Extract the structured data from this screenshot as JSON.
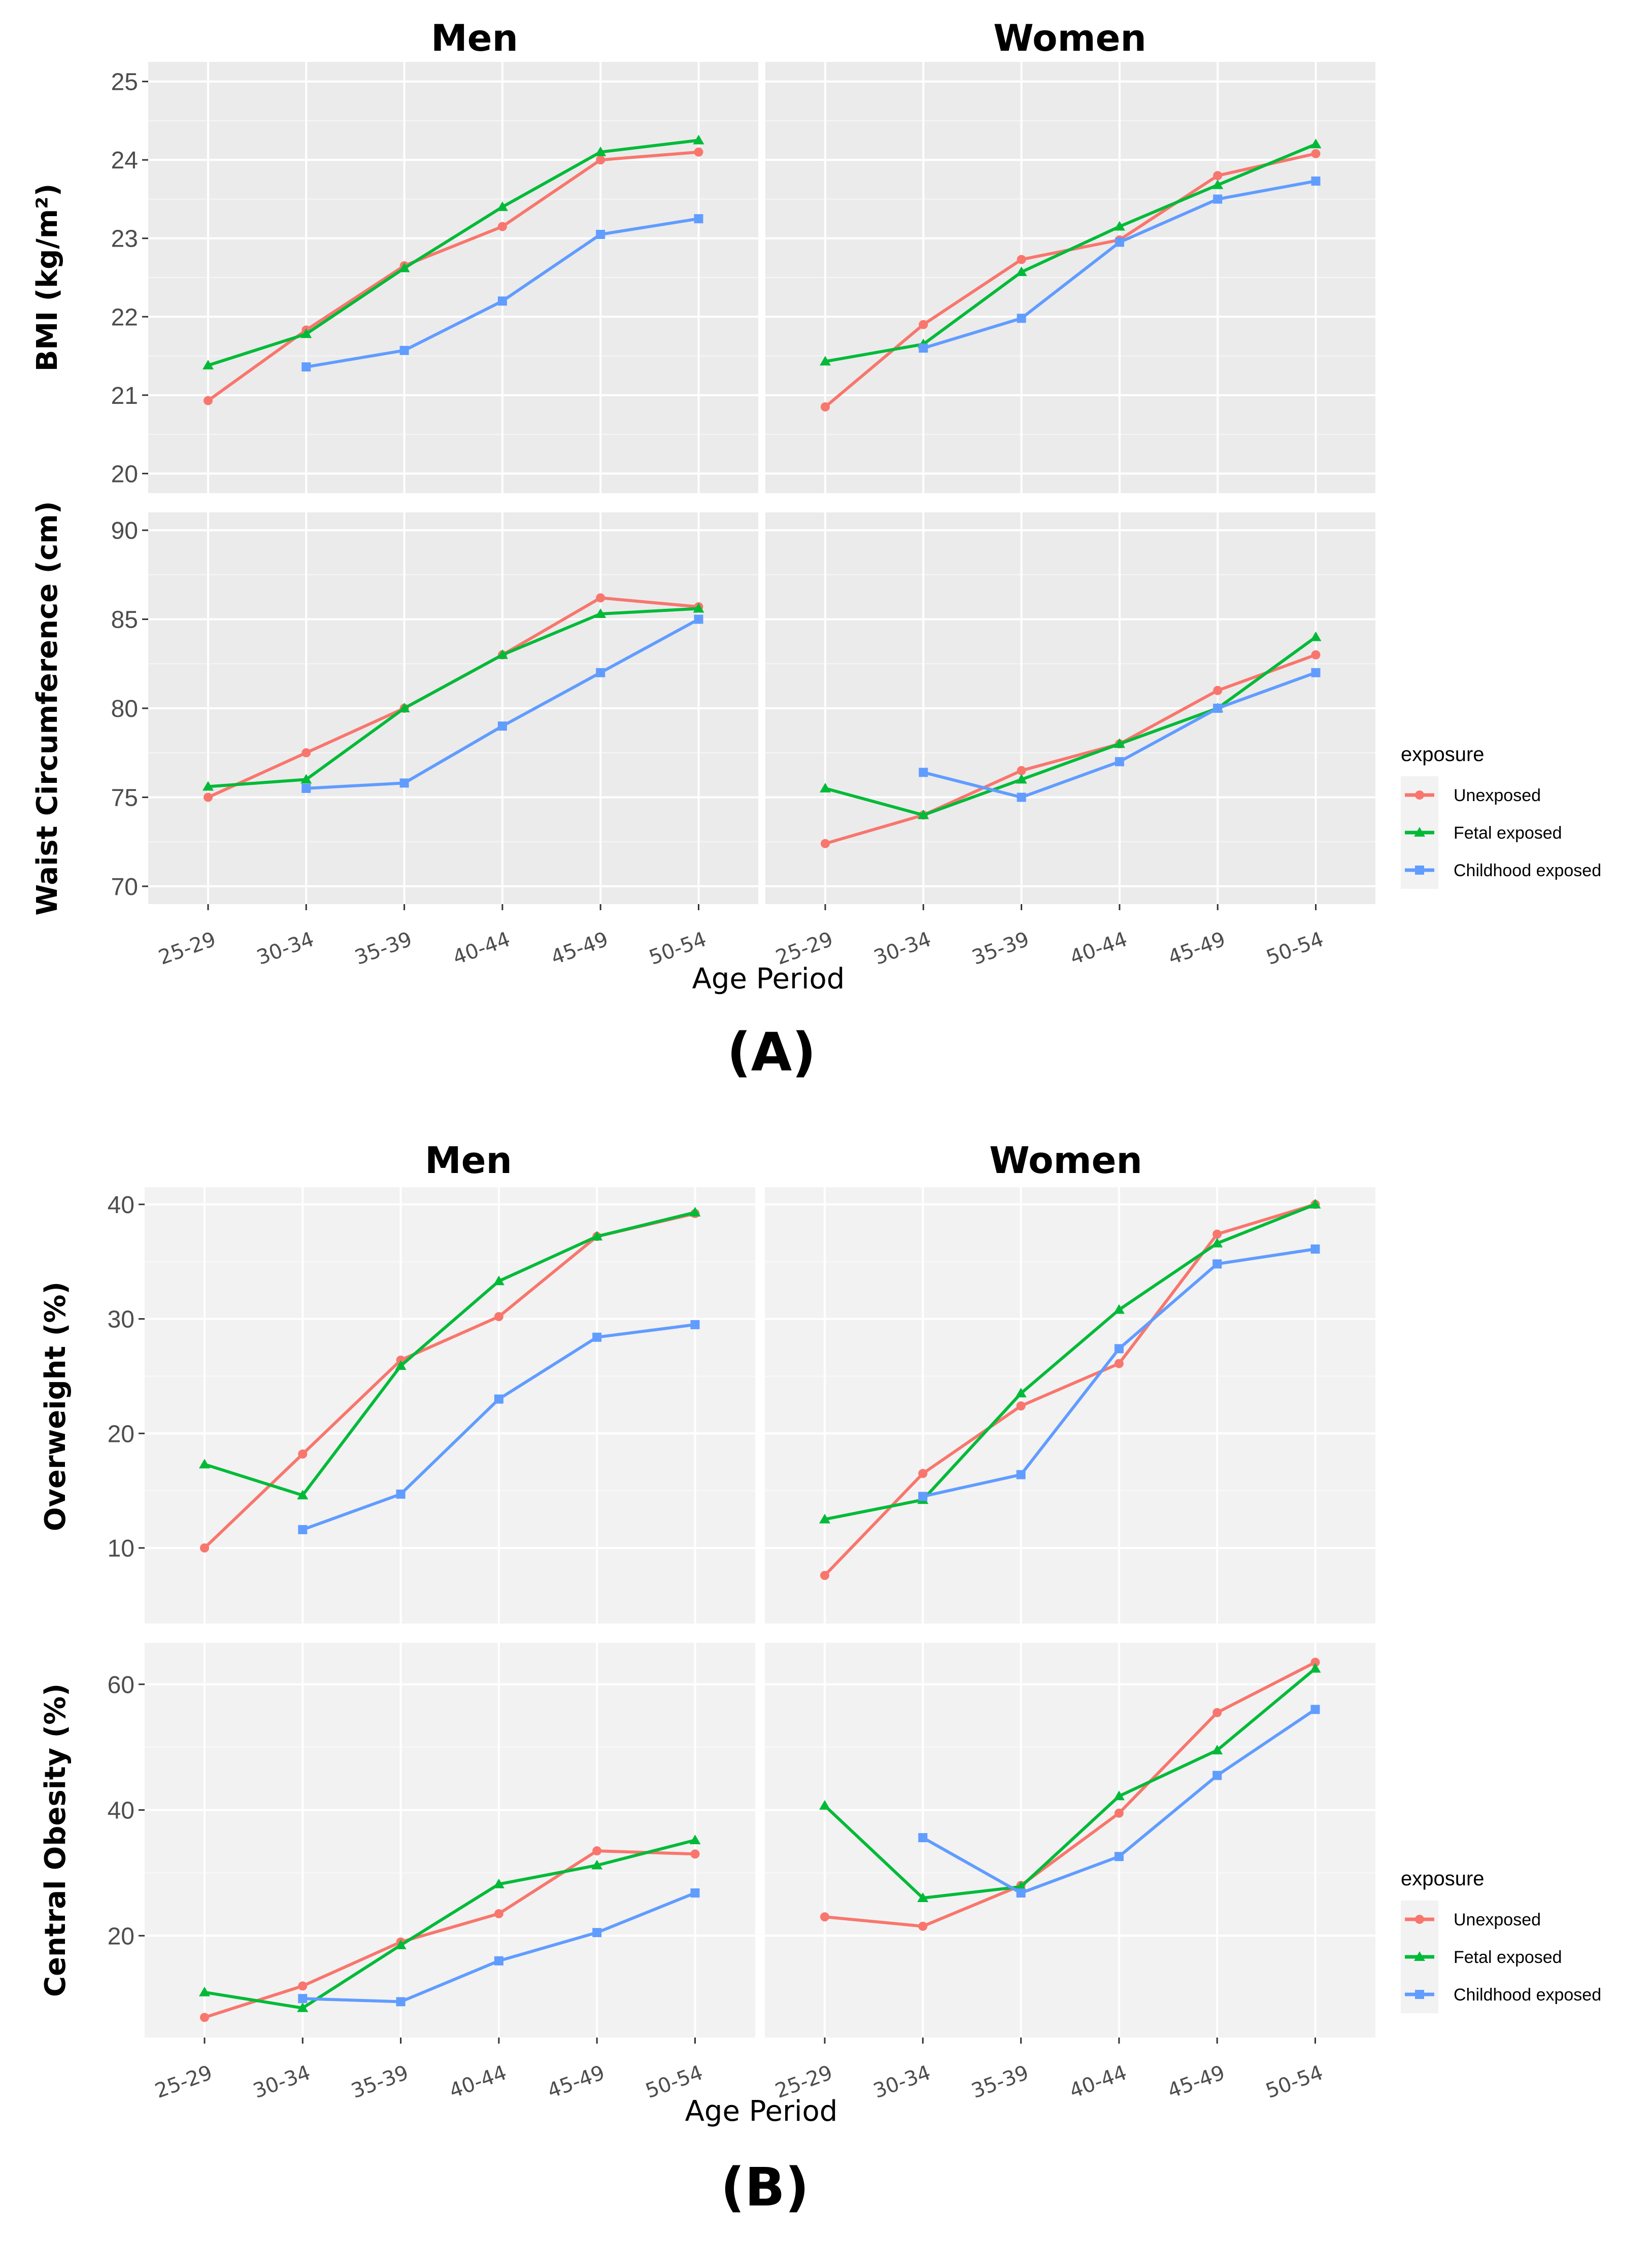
{
  "figure": {
    "colors": {
      "Unexposed": "#F8766D",
      "Fetal exposed": "#00BA38",
      "Childhood exposed": "#619CFF",
      "panel_bg_A": "#EBEBEB",
      "panel_bg_B": "#F2F2F2"
    },
    "panel_labels": {
      "A": "(A)",
      "B": "(B)"
    }
  },
  "legend": {
    "title": "exposure",
    "items": [
      "Unexposed",
      "Fetal exposed",
      "Childhood exposed"
    ]
  },
  "chart_data": [
    {
      "type": "line",
      "panel": "A",
      "facets": [
        "Men",
        "Women"
      ],
      "xlabel": "Age Period",
      "categories": [
        "25-29",
        "30-34",
        "35-39",
        "40-44",
        "45-49",
        "50-54"
      ],
      "rows": [
        {
          "ylabel": "BMI (kg/m²)",
          "ylim": [
            19.75,
            25.25
          ],
          "yticks": [
            20,
            21,
            22,
            23,
            24,
            25
          ],
          "Men": [
            {
              "name": "Unexposed",
              "values": [
                20.93,
                21.83,
                22.65,
                23.15,
                24.0,
                24.1
              ]
            },
            {
              "name": "Fetal exposed",
              "values": [
                21.38,
                21.78,
                22.62,
                23.4,
                24.1,
                24.25
              ]
            },
            {
              "name": "Childhood exposed",
              "values": [
                null,
                21.36,
                21.57,
                22.2,
                23.05,
                23.25
              ]
            }
          ],
          "Women": [
            {
              "name": "Unexposed",
              "values": [
                20.85,
                21.9,
                22.73,
                22.98,
                23.8,
                24.08
              ]
            },
            {
              "name": "Fetal exposed",
              "values": [
                21.43,
                21.65,
                22.57,
                23.15,
                23.68,
                24.2
              ]
            },
            {
              "name": "Childhood exposed",
              "values": [
                null,
                21.6,
                21.98,
                22.95,
                23.5,
                23.73
              ]
            }
          ]
        },
        {
          "ylabel": "Waist Circumference (cm)",
          "ylim": [
            69.0,
            91.0
          ],
          "yticks": [
            70,
            75,
            80,
            85,
            90
          ],
          "Men": [
            {
              "name": "Unexposed",
              "values": [
                75.0,
                77.5,
                80.0,
                83.0,
                86.2,
                85.7
              ]
            },
            {
              "name": "Fetal exposed",
              "values": [
                75.6,
                76.0,
                80.0,
                83.0,
                85.3,
                85.6
              ]
            },
            {
              "name": "Childhood exposed",
              "values": [
                null,
                75.5,
                75.8,
                79.0,
                82.0,
                85.0
              ]
            }
          ],
          "Women": [
            {
              "name": "Unexposed",
              "values": [
                72.4,
                74.0,
                76.5,
                78.0,
                81.0,
                83.0
              ]
            },
            {
              "name": "Fetal exposed",
              "values": [
                75.5,
                74.0,
                76.0,
                78.0,
                80.0,
                84.0
              ]
            },
            {
              "name": "Childhood exposed",
              "values": [
                null,
                76.4,
                75.0,
                77.0,
                80.0,
                82.0
              ]
            }
          ]
        }
      ]
    },
    {
      "type": "line",
      "panel": "B",
      "facets": [
        "Men",
        "Women"
      ],
      "xlabel": "Age Period",
      "categories": [
        "25-29",
        "30-34",
        "35-39",
        "40-44",
        "45-49",
        "50-54"
      ],
      "rows": [
        {
          "ylabel": "Overweight (%)",
          "ylim": [
            3.4,
            41.5
          ],
          "yticks": [
            10,
            20,
            30,
            40
          ],
          "Men": [
            {
              "name": "Unexposed",
              "values": [
                10.0,
                18.2,
                26.4,
                30.2,
                37.2,
                39.2
              ]
            },
            {
              "name": "Fetal exposed",
              "values": [
                17.3,
                14.6,
                25.9,
                33.3,
                37.2,
                39.3
              ]
            },
            {
              "name": "Childhood exposed",
              "values": [
                null,
                11.6,
                14.7,
                23.0,
                28.4,
                29.5
              ]
            }
          ],
          "Women": [
            {
              "name": "Unexposed",
              "values": [
                7.6,
                16.5,
                22.4,
                26.1,
                37.4,
                40.0
              ]
            },
            {
              "name": "Fetal exposed",
              "values": [
                12.5,
                14.2,
                23.5,
                30.8,
                36.6,
                40.0
              ]
            },
            {
              "name": "Childhood exposed",
              "values": [
                null,
                14.5,
                16.4,
                27.4,
                34.8,
                36.1
              ]
            }
          ]
        },
        {
          "ylabel": "Central Obesity (%)",
          "ylim": [
            3.8,
            66.6
          ],
          "yticks": [
            20,
            40,
            60
          ],
          "Men": [
            {
              "name": "Unexposed",
              "values": [
                7.0,
                12.0,
                19.0,
                23.5,
                33.5,
                33.0
              ]
            },
            {
              "name": "Fetal exposed",
              "values": [
                11.0,
                8.5,
                18.5,
                28.2,
                31.2,
                35.2
              ]
            },
            {
              "name": "Childhood exposed",
              "values": [
                null,
                10.0,
                9.5,
                16.0,
                20.5,
                26.8
              ]
            }
          ],
          "Women": [
            {
              "name": "Unexposed",
              "values": [
                23.0,
                21.5,
                28.0,
                39.5,
                55.5,
                63.5
              ]
            },
            {
              "name": "Fetal exposed",
              "values": [
                40.7,
                26.0,
                27.8,
                42.2,
                49.5,
                62.5
              ]
            },
            {
              "name": "Childhood exposed",
              "values": [
                null,
                35.6,
                26.8,
                32.6,
                45.5,
                56.0
              ]
            }
          ]
        }
      ]
    }
  ]
}
